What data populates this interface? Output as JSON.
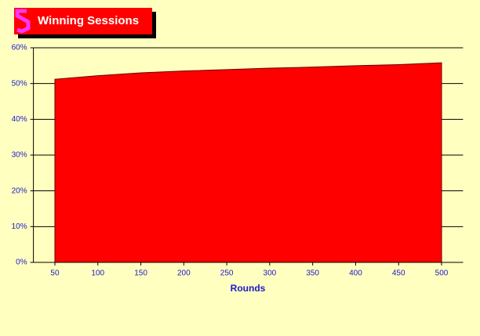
{
  "chart_data": {
    "type": "area",
    "title": "Winning Sessions",
    "x_label": "Rounds",
    "x": [
      50,
      100,
      150,
      200,
      250,
      300,
      350,
      400,
      450,
      500
    ],
    "values": [
      51.2,
      52.2,
      53.0,
      53.5,
      53.9,
      54.3,
      54.6,
      55.0,
      55.3,
      55.8
    ],
    "color": "#ff0000",
    "xlim": [
      25,
      525
    ],
    "xticks": [
      50,
      100,
      150,
      200,
      250,
      300,
      350,
      400,
      450,
      500
    ],
    "ylim": [
      0,
      60
    ],
    "yticks": [
      {
        "value": 0,
        "label": "0%"
      },
      {
        "value": 10,
        "label": "10%"
      },
      {
        "value": 20,
        "label": "20%"
      },
      {
        "value": 30,
        "label": "30%"
      },
      {
        "value": 40,
        "label": "40%"
      },
      {
        "value": 50,
        "label": "50%"
      },
      {
        "value": 60,
        "label": "60%"
      }
    ],
    "grid": true
  }
}
